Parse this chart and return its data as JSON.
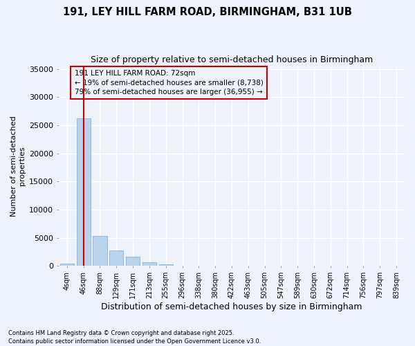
{
  "title": "191, LEY HILL FARM ROAD, BIRMINGHAM, B31 1UB",
  "subtitle": "Size of property relative to semi-detached houses in Birmingham",
  "xlabel": "Distribution of semi-detached houses by size in Birmingham",
  "ylabel": "Number of semi-detached\nproperties",
  "footnote1": "Contains HM Land Registry data © Crown copyright and database right 2025.",
  "footnote2": "Contains public sector information licensed under the Open Government Licence v3.0.",
  "categories": [
    "4sqm",
    "46sqm",
    "88sqm",
    "129sqm",
    "171sqm",
    "213sqm",
    "255sqm",
    "296sqm",
    "338sqm",
    "380sqm",
    "422sqm",
    "463sqm",
    "505sqm",
    "547sqm",
    "589sqm",
    "630sqm",
    "672sqm",
    "714sqm",
    "756sqm",
    "797sqm",
    "839sqm"
  ],
  "values": [
    350,
    26200,
    5300,
    2700,
    1600,
    600,
    300,
    50,
    20,
    10,
    5,
    3,
    2,
    1,
    1,
    1,
    0,
    0,
    0,
    0,
    0
  ],
  "bar_color": "#b8d4ec",
  "bar_edge_color": "#7aa8cc",
  "redline_x": 1.0,
  "property_label": "191 LEY HILL FARM ROAD: 72sqm",
  "pct_smaller": "19%",
  "pct_smaller_n": "8,738",
  "pct_larger": "79%",
  "pct_larger_n": "36,955",
  "annotation_box_color": "#cc0000",
  "ylim": [
    0,
    35500
  ],
  "yticks": [
    0,
    5000,
    10000,
    15000,
    20000,
    25000,
    30000,
    35000
  ],
  "bg_color": "#edf2fb",
  "grid_color": "#ffffff",
  "title_fontsize": 10.5,
  "subtitle_fontsize": 9
}
